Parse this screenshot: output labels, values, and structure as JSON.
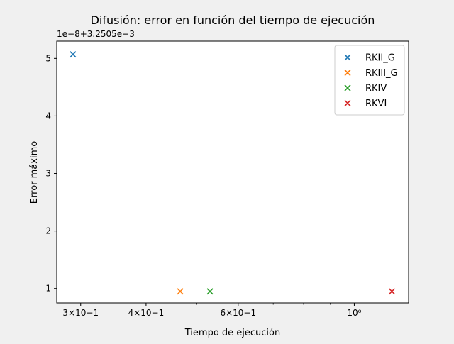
{
  "chart_data": {
    "type": "scatter",
    "title": "Difusión: error en función del tiempo de ejecución",
    "xlabel": "Tiempo de ejecución",
    "ylabel": "Error máximo",
    "x_scale": "log",
    "xlim": [
      0.27,
      1.27
    ],
    "ylim": [
      0.75,
      5.3
    ],
    "y_offset_label": "1e−8+3.2505e−3",
    "x_ticks": [
      {
        "value": 0.3,
        "label": "3×10−1"
      },
      {
        "value": 0.4,
        "label": "4×10−1"
      },
      {
        "value": 0.6,
        "label": "6×10−1"
      },
      {
        "value": 1.0,
        "label": "10⁰"
      }
    ],
    "x_minor_ticks": [
      0.5,
      0.7,
      0.8,
      0.9
    ],
    "y_ticks": [
      {
        "value": 1,
        "label": "1"
      },
      {
        "value": 2,
        "label": "2"
      },
      {
        "value": 3,
        "label": "3"
      },
      {
        "value": 4,
        "label": "4"
      },
      {
        "value": 5,
        "label": "5"
      }
    ],
    "grid": false,
    "legend_position": "top-right",
    "series": [
      {
        "name": "RKII_G",
        "color": "#1f77b4",
        "x": [
          0.29
        ],
        "y": [
          5.07
        ]
      },
      {
        "name": "RKIII_G",
        "color": "#ff7f0e",
        "x": [
          0.465
        ],
        "y": [
          0.95
        ]
      },
      {
        "name": "RKIV",
        "color": "#2ca02c",
        "x": [
          0.53
        ],
        "y": [
          0.95
        ]
      },
      {
        "name": "RKVI",
        "color": "#d62728",
        "x": [
          1.18
        ],
        "y": [
          0.95
        ]
      }
    ]
  }
}
